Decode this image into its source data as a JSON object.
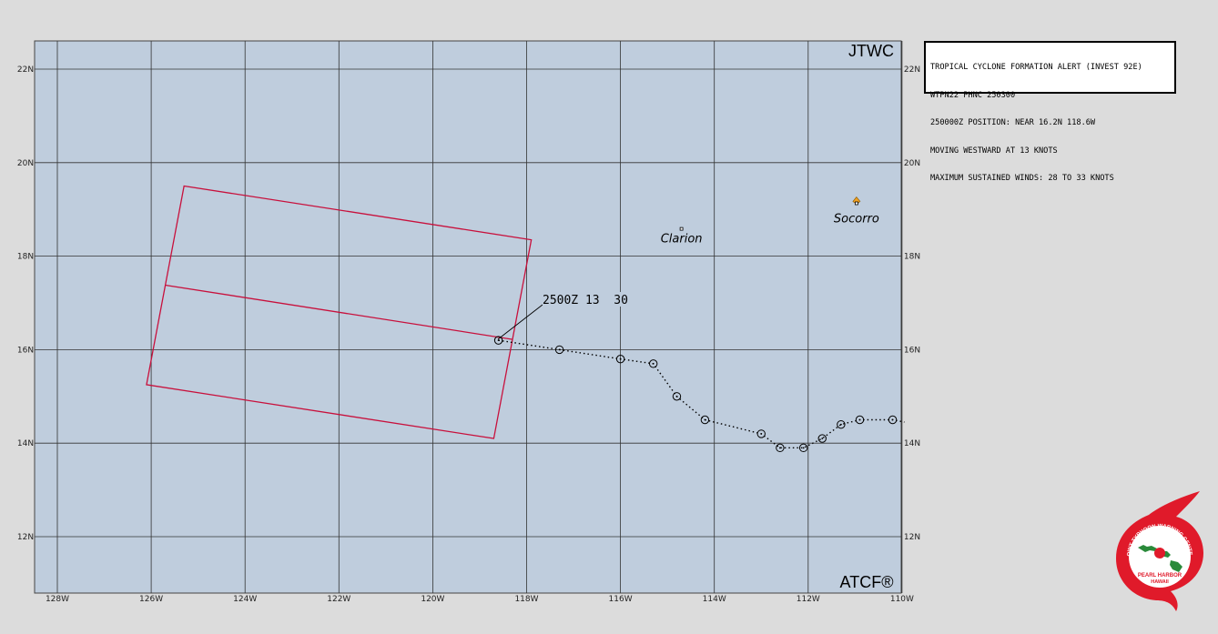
{
  "map": {
    "corner_tl": "JTWC",
    "corner_br": "ATCF®",
    "lat_labels": [
      "22N",
      "20N",
      "18N",
      "16N",
      "14N",
      "12N"
    ],
    "lon_labels": [
      "128W",
      "126W",
      "124W",
      "122W",
      "120W",
      "118W",
      "116W",
      "114W",
      "112W",
      "110W"
    ],
    "places": [
      {
        "name": "Clarion",
        "lon": -114.7,
        "lat": 18.35
      },
      {
        "name": "Socorro",
        "lon": -110.97,
        "lat": 18.78
      }
    ],
    "track_label": "2500Z 13  30",
    "track_points": [
      {
        "lon": -118.6,
        "lat": 16.2
      },
      {
        "lon": -117.3,
        "lat": 16.0
      },
      {
        "lon": -116.0,
        "lat": 15.8
      },
      {
        "lon": -115.3,
        "lat": 15.7
      },
      {
        "lon": -114.8,
        "lat": 15.0
      },
      {
        "lon": -114.2,
        "lat": 14.5
      },
      {
        "lon": -113.0,
        "lat": 14.2
      },
      {
        "lon": -112.6,
        "lat": 13.9
      },
      {
        "lon": -112.1,
        "lat": 13.9
      },
      {
        "lon": -111.7,
        "lat": 14.1
      },
      {
        "lon": -111.3,
        "lat": 14.4
      },
      {
        "lon": -110.9,
        "lat": 14.5
      },
      {
        "lon": -110.2,
        "lat": 14.5
      }
    ],
    "track_tail": {
      "lon": -109.95,
      "lat": 14.45
    },
    "alert_area": {
      "corners": [
        {
          "lon": -125.3,
          "lat": 19.5
        },
        {
          "lon": -117.9,
          "lat": 18.35
        },
        {
          "lon": -118.7,
          "lat": 14.1
        },
        {
          "lon": -126.1,
          "lat": 15.25
        }
      ],
      "midline": [
        {
          "lon": -125.7,
          "lat": 17.38
        },
        {
          "lon": -118.3,
          "lat": 16.22
        }
      ]
    },
    "colors": {
      "ocean": "#bfcddd",
      "alert_area": "#c8103c",
      "track": "#000000",
      "socorro_marker": "#f0a020"
    }
  },
  "info_box": {
    "lines": [
      "TROPICAL CYCLONE FORMATION ALERT (INVEST 92E)",
      "WTPN22 PHNC 250300",
      "250000Z POSITION: NEAR 16.2N 118.6W",
      "MOVING WESTWARD AT 13 KNOTS",
      "MAXIMUM SUSTAINED WINDS: 28 TO 33 KNOTS"
    ]
  },
  "logo": {
    "ring_text": "JOINT TYPHOON WARNING CENTER",
    "line1": "PEARL HARBOR",
    "line2": "HAWAII",
    "colors": {
      "red": "#e01a2a",
      "green": "#2a8a3a"
    }
  }
}
